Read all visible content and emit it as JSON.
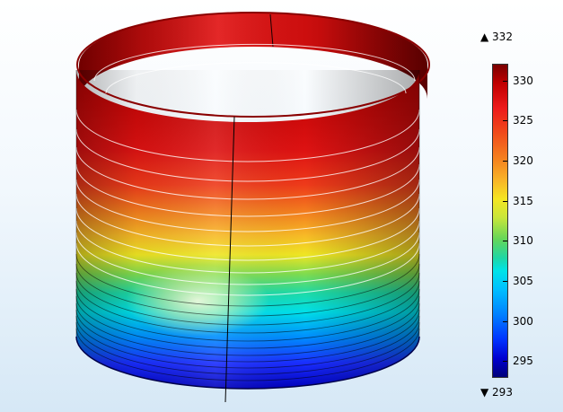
{
  "plot": {
    "type": "3d-surface-temperature",
    "object": "open-cylinder-shell",
    "colormap": "rainbow",
    "background_gradient": [
      "#ffffff",
      "#d6e8f6"
    ]
  },
  "legend": {
    "max_label": "▲ 332",
    "min_label": "▼ 293",
    "max": 332,
    "min": 293,
    "ticks": [
      "330",
      "325",
      "320",
      "315",
      "310",
      "305",
      "300",
      "295"
    ]
  }
}
